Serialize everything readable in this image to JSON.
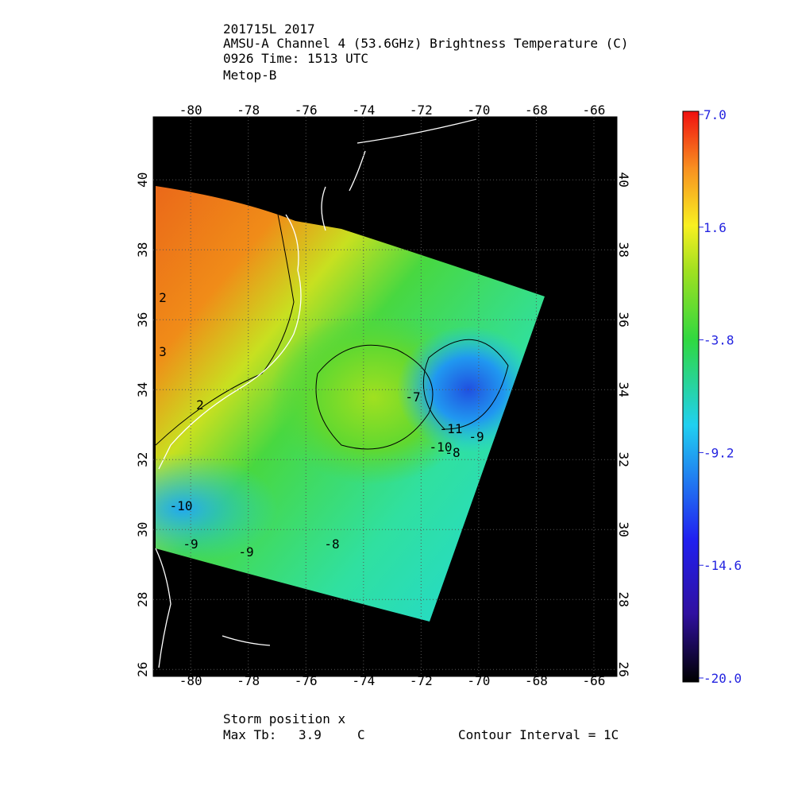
{
  "header": {
    "lines": [
      "201715L 2017",
      "AMSU-A Channel 4 (53.6GHz) Brightness Temperature (C)",
      "0926 Time: 1513 UTC",
      "Metop-B"
    ]
  },
  "map": {
    "lon_range": [
      -81.3,
      -65.2
    ],
    "lat_range": [
      25.8,
      41.8
    ],
    "lon_ticks": [
      -80,
      -78,
      -76,
      -74,
      -72,
      -70,
      -68,
      -66
    ],
    "lat_ticks": [
      26,
      28,
      30,
      32,
      34,
      36,
      38,
      40
    ],
    "contour_labels": [
      "2",
      "3",
      "2",
      "-10",
      "-9",
      "-9",
      "-8",
      "-11",
      "-10",
      "-9",
      "-8",
      "-7"
    ]
  },
  "colorbar": {
    "range": [
      -20,
      7
    ],
    "ticks": [
      {
        "value": 7,
        "label": "7.0"
      },
      1.6,
      -3.8,
      -9.2,
      -14.6,
      {
        "value": -20,
        "label": "-20.0"
      }
    ]
  },
  "footer": {
    "storm": "Storm position x",
    "max_label": "Max Tb:",
    "max_value": "3.9",
    "max_unit": "C",
    "interval": "Contour Interval = 1C"
  }
}
